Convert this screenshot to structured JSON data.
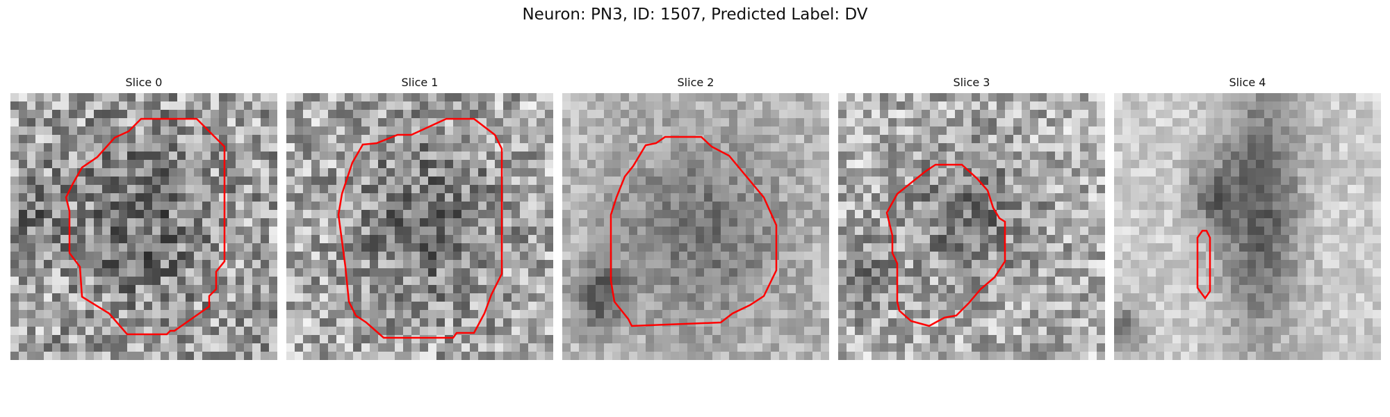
{
  "figure": {
    "title": "Neuron: PN3, ID: 1507, Predicted Label: DV"
  },
  "panels": [
    {
      "title": "Slice 0",
      "blob": "center"
    },
    {
      "title": "Slice 1",
      "blob": "ring"
    },
    {
      "title": "Slice 2",
      "blob": "smooth"
    },
    {
      "title": "Slice 3",
      "blob": "small"
    },
    {
      "title": "Slice 4",
      "blob": "streak"
    }
  ],
  "colors": {
    "contour": "#ff0000"
  }
}
